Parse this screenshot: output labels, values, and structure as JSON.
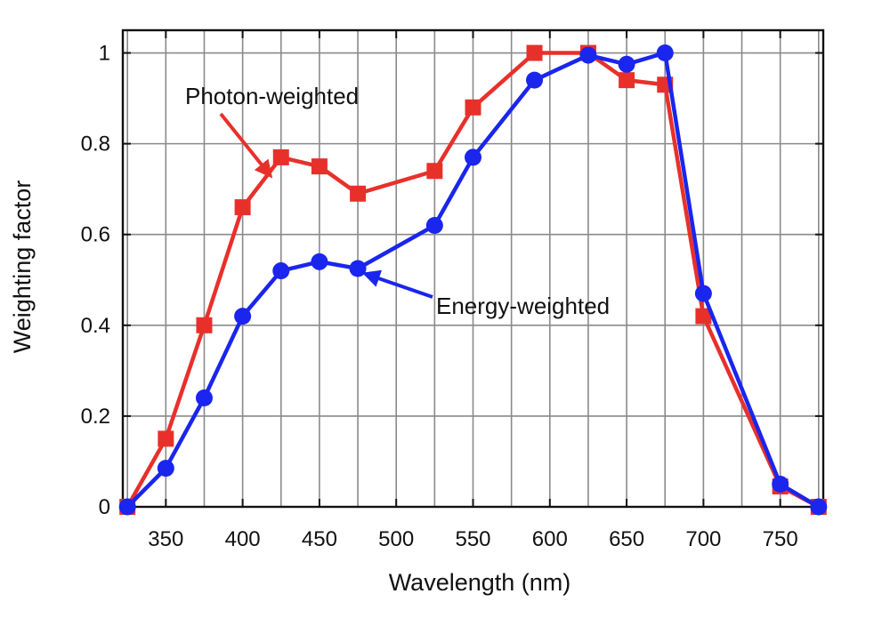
{
  "chart_data": {
    "type": "line",
    "xlabel": "Wavelength (nm)",
    "ylabel": "Weighting factor",
    "xlim": [
      322,
      778
    ],
    "ylim": [
      0,
      1.05
    ],
    "xticks": [
      350,
      400,
      450,
      500,
      550,
      600,
      650,
      700,
      750
    ],
    "xtick_labels": [
      "350",
      "400",
      "450",
      "500",
      "550",
      "600",
      "650",
      "700",
      "750"
    ],
    "yticks": [
      0,
      0.2,
      0.4,
      0.6,
      0.8,
      1
    ],
    "ytick_labels": [
      "0",
      "0.2",
      "0.4",
      "0.6",
      "0.8",
      "1"
    ],
    "xgrid": [
      325,
      350,
      375,
      400,
      425,
      450,
      475,
      500,
      525,
      550,
      575,
      600,
      625,
      650,
      675,
      700,
      725,
      750,
      775
    ],
    "ygrid": [
      0,
      0.2,
      0.4,
      0.6,
      0.8,
      1
    ],
    "grid": true,
    "series": [
      {
        "name": "Photon-weighted",
        "color": "#e8302b",
        "marker": "square",
        "x": [
          325,
          350,
          375,
          400,
          425,
          450,
          475,
          525,
          550,
          590,
          625,
          650,
          675,
          700,
          750,
          775
        ],
        "y": [
          0,
          0.15,
          0.4,
          0.66,
          0.77,
          0.75,
          0.69,
          0.74,
          0.88,
          1.0,
          1.0,
          0.94,
          0.93,
          0.42,
          0.045,
          0
        ]
      },
      {
        "name": "Energy-weighted",
        "color": "#1a25ee",
        "marker": "circle",
        "x": [
          325,
          350,
          375,
          400,
          425,
          450,
          475,
          525,
          550,
          590,
          625,
          650,
          675,
          700,
          750,
          775
        ],
        "y": [
          0,
          0.085,
          0.24,
          0.42,
          0.52,
          0.54,
          0.525,
          0.62,
          0.77,
          0.94,
          0.995,
          0.975,
          1.0,
          0.47,
          0.05,
          0
        ]
      }
    ],
    "annotations": [
      {
        "text": "Photon-weighted",
        "arrow_to": [
          418,
          0.73
        ]
      },
      {
        "text": "Energy-weighted",
        "arrow_to": [
          480,
          0.525
        ]
      }
    ]
  }
}
